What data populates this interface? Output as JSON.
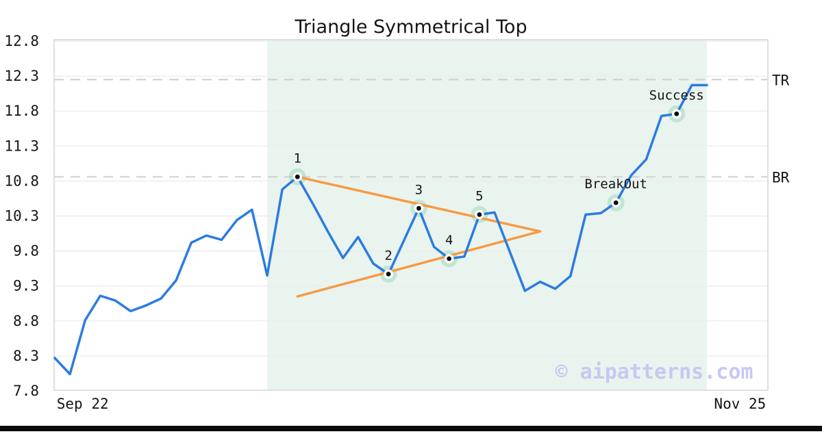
{
  "figure": {
    "title": "Triangle Symmetrical Top",
    "watermark": "© aipatterns.com"
  },
  "chart_data": {
    "type": "line",
    "title": "Triangle Symmetrical Top",
    "x_ticks": [
      {
        "label": "Sep 22",
        "position": 0.04
      },
      {
        "label": "Nov 25",
        "position": 0.961
      }
    ],
    "y_ticks": [
      7.8,
      8.3,
      8.8,
      9.3,
      9.8,
      10.3,
      10.8,
      11.3,
      11.8,
      12.3,
      12.8
    ],
    "y_range": [
      7.81,
      12.82
    ],
    "grid": true,
    "series": {
      "name": "price",
      "values": [
        8.27,
        8.04,
        8.81,
        9.16,
        9.09,
        8.94,
        9.02,
        9.12,
        9.38,
        9.92,
        10.02,
        9.96,
        10.24,
        10.39,
        9.45,
        10.68,
        10.86,
        10.48,
        10.08,
        9.7,
        10.0,
        9.62,
        9.47,
        9.94,
        10.41,
        9.86,
        9.69,
        9.72,
        10.32,
        10.35,
        9.79,
        9.23,
        9.36,
        9.26,
        9.44,
        10.32,
        10.34,
        10.49,
        10.88,
        11.11,
        11.73,
        11.76,
        12.17,
        12.17
      ]
    },
    "pattern_points": [
      {
        "label": "1",
        "index": 16,
        "value": 10.86
      },
      {
        "label": "2",
        "index": 22,
        "value": 9.47
      },
      {
        "label": "3",
        "index": 24,
        "value": 10.41
      },
      {
        "label": "4",
        "index": 26,
        "value": 9.69
      },
      {
        "label": "5",
        "index": 28,
        "value": 10.32
      },
      {
        "label": "BreakOut",
        "index": 37,
        "value": 10.49
      },
      {
        "label": "Success",
        "index": 41,
        "value": 11.76
      }
    ],
    "levels": [
      {
        "label": "TR",
        "value": 12.25
      },
      {
        "label": "BR",
        "value": 10.86
      }
    ],
    "trendlines": [
      {
        "name": "upper",
        "from_index": 16,
        "from_value": 10.86,
        "to_index": 32,
        "to_value": 10.08
      },
      {
        "name": "lower",
        "from_index": 16,
        "from_value": 9.15,
        "to_index": 32,
        "to_value": 10.08
      }
    ],
    "shaded_region": {
      "from_index": 14,
      "to_index": 43
    },
    "watermark": "© aipatterns.com",
    "legend": false,
    "colors": {
      "line": "#2b7be0",
      "trendline": "#f79a43",
      "shade": "#e9f4ef",
      "halo": "#8ccfa9",
      "grid": "#ececec",
      "border": "#d6d6d6",
      "dashed": "#d2d2d2",
      "text": "#141414",
      "watermark": "#c6c9f2",
      "bottom_bar": "#0a0a0a"
    }
  }
}
